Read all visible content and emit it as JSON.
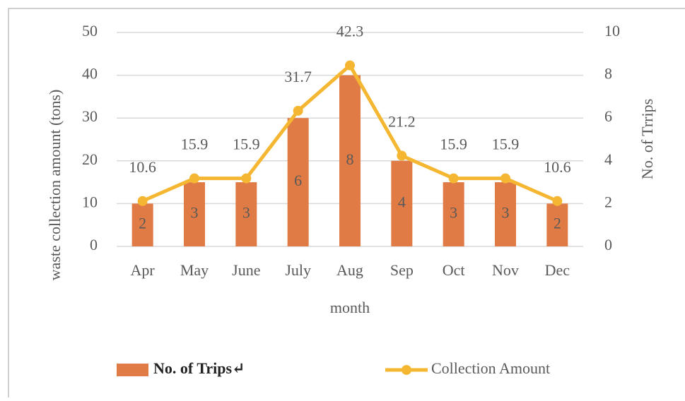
{
  "chart_data": {
    "type": "bar_line",
    "categories": [
      "Apr",
      "May",
      "June",
      "July",
      "Aug",
      "Sep",
      "Oct",
      "Nov",
      "Dec"
    ],
    "series": [
      {
        "name": "No. of Trips↵",
        "color": "#e07b45",
        "type": "bar",
        "axis": "y2",
        "values": [
          2,
          3,
          3,
          6,
          8,
          4,
          3,
          3,
          2
        ]
      },
      {
        "name": "Collection Amount",
        "color": "#f5b731",
        "type": "line",
        "axis": "y",
        "values": [
          10.6,
          15.9,
          15.9,
          31.7,
          42.3,
          21.2,
          15.9,
          15.9,
          10.6
        ]
      }
    ],
    "ylabel": "waste collection amount (tons)",
    "y2label": "No. of Trrips",
    "xlabel": "month",
    "ylim": [
      0,
      50
    ],
    "yticks": [
      0,
      10,
      20,
      30,
      40,
      50
    ],
    "y2lim": [
      0,
      10
    ],
    "y2ticks": [
      0,
      2,
      4,
      6,
      8,
      10
    ],
    "grid": true,
    "legend": "bottom"
  }
}
